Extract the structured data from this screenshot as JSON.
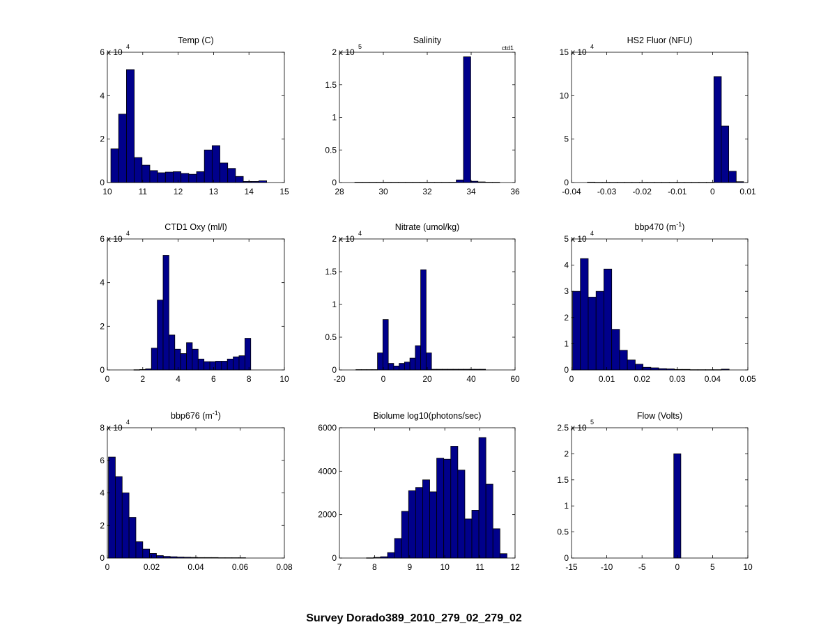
{
  "suptitle": "Survey Dorado389_2010_279_02_279_02",
  "chart_data": [
    {
      "type": "bar",
      "title": "Temp (C)",
      "multiplier": "x 10",
      "multiplier_exp": "4",
      "xlim": [
        10,
        15
      ],
      "ylim": [
        0,
        6
      ],
      "xticks": [
        "10",
        "11",
        "12",
        "13",
        "14",
        "15"
      ],
      "yticks": [
        "0",
        "2",
        "4",
        "6"
      ],
      "bin_start": 10.1,
      "bin_width": 0.22,
      "values": [
        1.55,
        3.15,
        5.2,
        1.15,
        0.8,
        0.55,
        0.45,
        0.48,
        0.5,
        0.42,
        0.38,
        0.5,
        1.5,
        1.7,
        0.9,
        0.65,
        0.28,
        0.05,
        0.05,
        0.08
      ]
    },
    {
      "type": "bar",
      "title": "Salinity",
      "corner_label": "ctd1",
      "multiplier": "x 10",
      "multiplier_exp": "5",
      "xlim": [
        28,
        36
      ],
      "ylim": [
        0,
        2
      ],
      "xticks": [
        "28",
        "30",
        "32",
        "34",
        "36"
      ],
      "yticks": [
        "0",
        "0.5",
        "1",
        "1.5",
        "2"
      ],
      "bin_start": 28.7,
      "bin_width": 0.33,
      "values": [
        0.005,
        0.005,
        0.005,
        0.005,
        0.005,
        0.005,
        0.005,
        0.005,
        0.005,
        0.005,
        0.005,
        0.005,
        0.005,
        0.005,
        0.04,
        1.93,
        0.02,
        0.01,
        0.005,
        0.005
      ]
    },
    {
      "type": "bar",
      "title": "HS2 Fluor (NFU)",
      "multiplier": "x 10",
      "multiplier_exp": "4",
      "xlim": [
        -0.04,
        0.01
      ],
      "ylim": [
        0,
        15
      ],
      "xticks": [
        "-0.04",
        "-0.03",
        "-0.02",
        "-0.01",
        "0",
        "0.01"
      ],
      "yticks": [
        "0",
        "5",
        "10",
        "15"
      ],
      "bin_start": -0.0355,
      "bin_width": 0.00211,
      "values": [
        0.05,
        0.02,
        0.02,
        0.02,
        0.02,
        0.02,
        0.02,
        0.02,
        0.02,
        0.02,
        0.02,
        0.02,
        0.02,
        0.02,
        0.02,
        0.02,
        0.02,
        12.2,
        6.5,
        1.3,
        0.1
      ]
    },
    {
      "type": "bar",
      "title": "CTD1 Oxy (ml/l)",
      "multiplier": "x 10",
      "multiplier_exp": "4",
      "xlim": [
        0,
        10
      ],
      "ylim": [
        0,
        6
      ],
      "xticks": [
        "0",
        "2",
        "4",
        "6",
        "8",
        "10"
      ],
      "yticks": [
        "0",
        "2",
        "4",
        "6"
      ],
      "bin_start": 1.5,
      "bin_width": 0.33,
      "values": [
        0.01,
        0.02,
        0.05,
        1.0,
        3.2,
        5.25,
        1.6,
        0.95,
        0.75,
        1.25,
        0.95,
        0.5,
        0.38,
        0.38,
        0.4,
        0.4,
        0.5,
        0.6,
        0.65,
        1.45
      ]
    },
    {
      "type": "bar",
      "title": "Nitrate (umol/kg)",
      "multiplier": "x 10",
      "multiplier_exp": "4",
      "xlim": [
        -20,
        60
      ],
      "ylim": [
        0,
        2
      ],
      "xticks": [
        "-20",
        "0",
        "20",
        "40",
        "60"
      ],
      "yticks": [
        "0",
        "0.5",
        "1",
        "1.5",
        "2"
      ],
      "bin_start": -12.5,
      "bin_width": 2.46,
      "values": [
        0.005,
        0.005,
        0.005,
        0.005,
        0.26,
        0.77,
        0.1,
        0.06,
        0.1,
        0.12,
        0.18,
        0.37,
        1.53,
        0.26,
        0.01,
        0.01,
        0.01,
        0.01,
        0.01,
        0.01,
        0.01,
        0.01,
        0.01,
        0.01
      ]
    },
    {
      "type": "bar",
      "title": "bbp470 (m",
      "title_sup": "-1",
      "title_end": ")",
      "multiplier": "x 10",
      "multiplier_exp": "4",
      "xlim": [
        0,
        0.05
      ],
      "ylim": [
        0,
        5
      ],
      "xticks": [
        "0",
        "0.01",
        "0.02",
        "0.03",
        "0.04",
        "0.05"
      ],
      "yticks": [
        "0",
        "1",
        "2",
        "3",
        "4",
        "5"
      ],
      "bin_start": 0.0003,
      "bin_width": 0.00222,
      "values": [
        3.0,
        4.25,
        2.78,
        3.0,
        3.85,
        1.55,
        0.75,
        0.38,
        0.22,
        0.1,
        0.08,
        0.05,
        0.04,
        0.02,
        0.02,
        0.01,
        0.01,
        0.01,
        0.01,
        0.03
      ]
    },
    {
      "type": "bar",
      "title": "bbp676 (m",
      "title_sup": "-1",
      "title_end": ")",
      "multiplier": "x 10",
      "multiplier_exp": "4",
      "xlim": [
        0,
        0.08
      ],
      "ylim": [
        0,
        8
      ],
      "xticks": [
        "0",
        "0.02",
        "0.04",
        "0.06",
        "0.08"
      ],
      "yticks": [
        "0",
        "2",
        "4",
        "6",
        "8"
      ],
      "bin_start": 0.0005,
      "bin_width": 0.0031,
      "values": [
        6.2,
        5.0,
        4.0,
        2.5,
        1.0,
        0.55,
        0.28,
        0.15,
        0.1,
        0.08,
        0.06,
        0.05,
        0.04,
        0.03,
        0.03,
        0.03,
        0.02,
        0.02,
        0.02,
        0.02
      ]
    },
    {
      "type": "bar",
      "title": "Biolume log10(photons/sec)",
      "xlim": [
        7,
        12
      ],
      "ylim": [
        0,
        6000
      ],
      "xticks": [
        "7",
        "8",
        "9",
        "10",
        "11",
        "12"
      ],
      "yticks": [
        "0",
        "2000",
        "4000",
        "6000"
      ],
      "bin_start": 7.77,
      "bin_width": 0.2,
      "values": [
        10,
        30,
        60,
        250,
        900,
        2150,
        3100,
        3250,
        3600,
        3050,
        4600,
        4550,
        5150,
        4050,
        1800,
        2200,
        5550,
        3400,
        1350,
        200
      ]
    },
    {
      "type": "bar",
      "title": "Flow (Volts)",
      "multiplier": "x 10",
      "multiplier_exp": "5",
      "xlim": [
        -15,
        10
      ],
      "ylim": [
        0,
        2.5
      ],
      "xticks": [
        "-15",
        "-10",
        "-5",
        "0",
        "5",
        "10"
      ],
      "yticks": [
        "0",
        "0.5",
        "1",
        "1.5",
        "2",
        "2.5"
      ],
      "bin_start": -0.5,
      "bin_width": 1.0,
      "values": [
        2.0
      ]
    }
  ]
}
